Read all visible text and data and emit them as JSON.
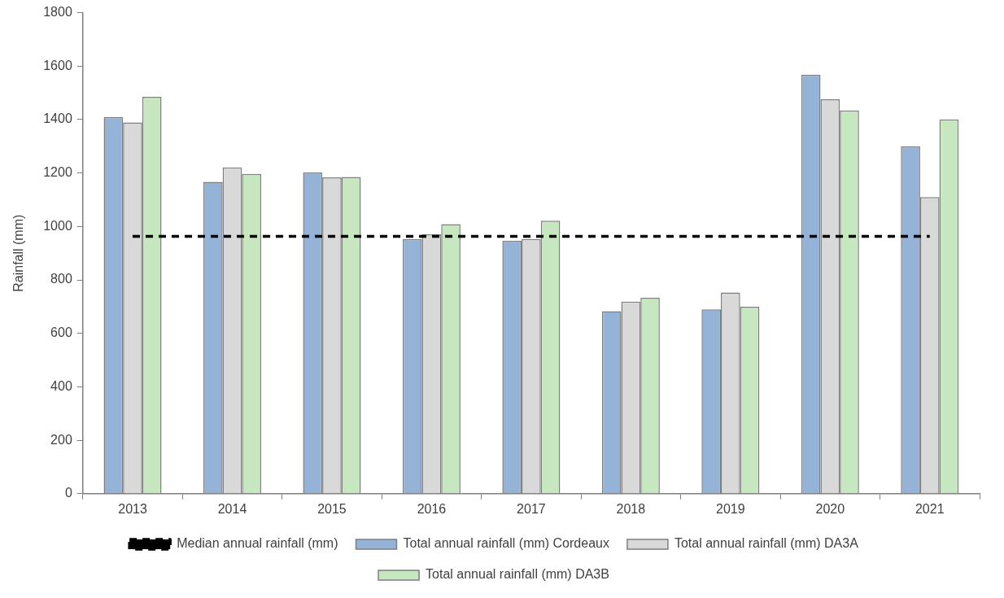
{
  "chart_data": {
    "type": "bar",
    "ylabel": "Rainfall (mm)",
    "categories": [
      "2013",
      "2014",
      "2015",
      "2016",
      "2017",
      "2018",
      "2019",
      "2020",
      "2021"
    ],
    "series": [
      {
        "name": "Total annual rainfall (mm) Cordeaux",
        "color": "#95b3d7",
        "values": [
          1410,
          1167,
          1202,
          952,
          946,
          683,
          690,
          1568,
          1300
        ]
      },
      {
        "name": "Total annual rainfall (mm) DA3A",
        "color": "#d9d9d9",
        "values": [
          1389,
          1221,
          1184,
          971,
          953,
          719,
          753,
          1476,
          1110
        ]
      },
      {
        "name": "Total annual rainfall (mm) DA3B",
        "color": "#c6e7bf",
        "values": [
          1485,
          1197,
          1185,
          1009,
          1022,
          733,
          700,
          1434,
          1401
        ]
      },
      {
        "name": "Median annual rainfall (mm)",
        "type": "line",
        "color": "#000000",
        "line_style": "dashed",
        "marker": "none",
        "values": [
          963,
          963,
          963,
          963,
          963,
          963,
          963,
          963,
          963
        ]
      }
    ],
    "ylim": [
      0,
      1800
    ],
    "yticks": [
      0,
      200,
      400,
      600,
      800,
      1000,
      1200,
      1400,
      1600,
      1800
    ],
    "grid": false,
    "legend": "bottom"
  }
}
